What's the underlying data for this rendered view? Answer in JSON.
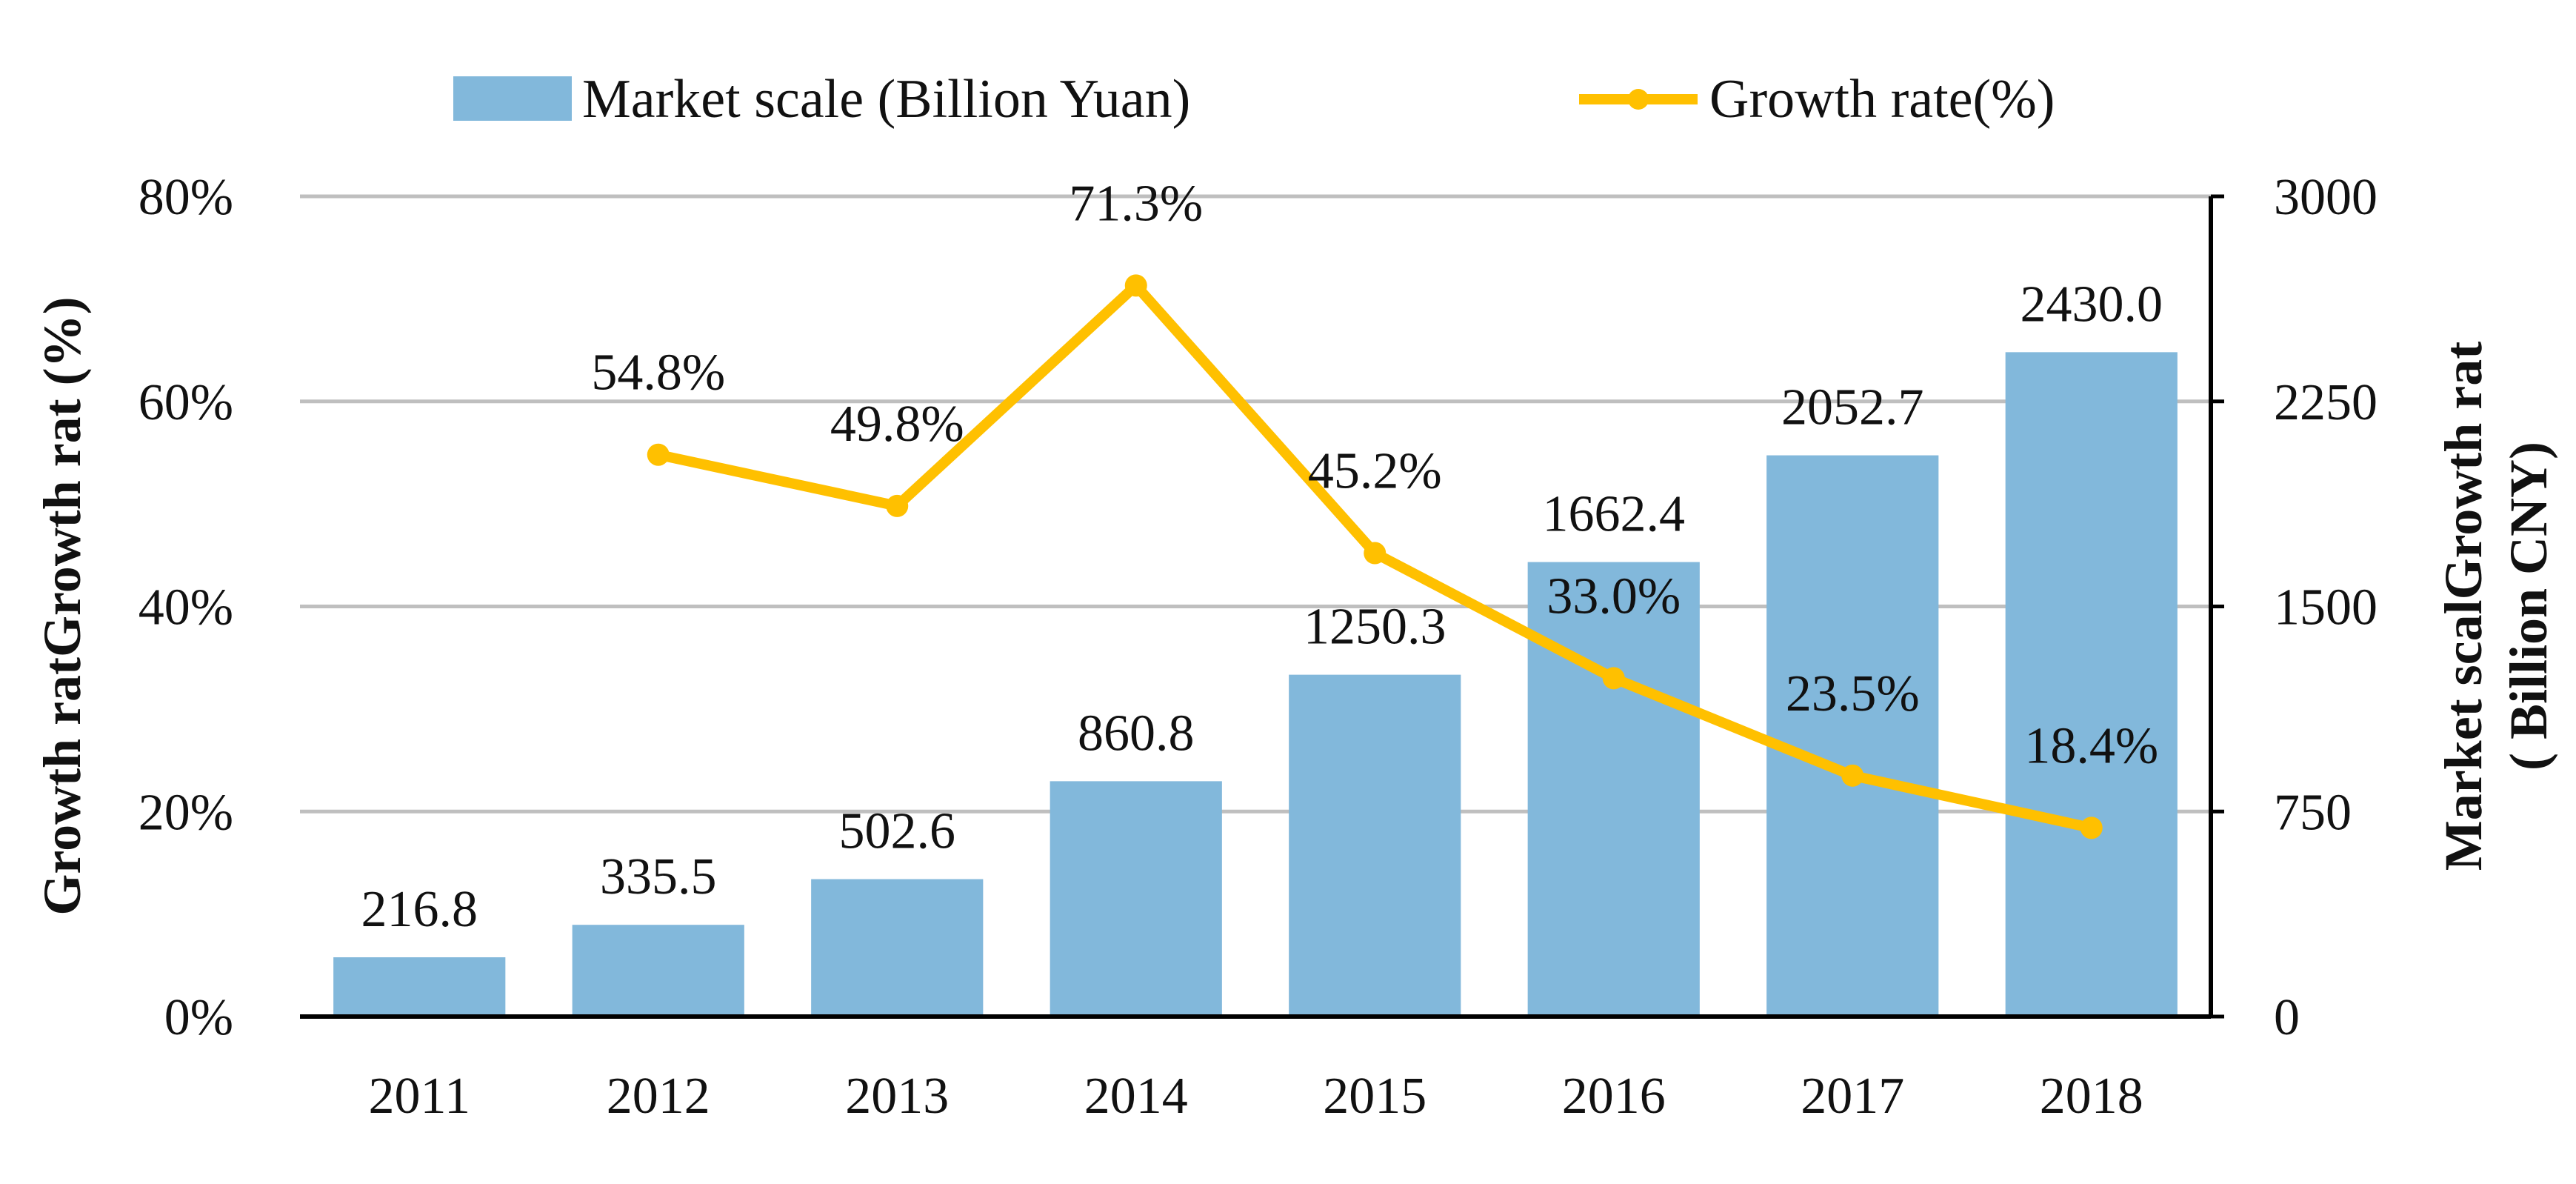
{
  "chart_data": {
    "type": "bar",
    "categories": [
      "2011",
      "2012",
      "2013",
      "2014",
      "2015",
      "2016",
      "2017",
      "2018"
    ],
    "series": [
      {
        "name": "Market scale (Billion Yuan)",
        "type": "bar",
        "axis": "right",
        "values": [
          216.8,
          335.5,
          502.6,
          860.8,
          1250.3,
          1662.4,
          2052.7,
          2430.0
        ],
        "labels": [
          "216.8",
          "335.5",
          "502.6",
          "860.8",
          "1250.3",
          "1662.4",
          "2052.7",
          "2430.0"
        ]
      },
      {
        "name": "Growth rate(%)",
        "type": "line",
        "axis": "left",
        "values": [
          null,
          54.8,
          49.8,
          71.3,
          45.2,
          33.0,
          23.5,
          18.4
        ],
        "labels": [
          "",
          "54.8%",
          "49.8%",
          "71.3%",
          "45.2%",
          "33.0%",
          "23.5%",
          "18.4%"
        ]
      }
    ],
    "y_left": {
      "label": "Growth ratGrowth rat (%)",
      "range": [
        0,
        80
      ],
      "ticks": [
        0,
        20,
        40,
        60,
        80
      ],
      "tick_labels": [
        "0%",
        "20%",
        "40%",
        "60%",
        "80%"
      ]
    },
    "y_right": {
      "label_line1": "Market scalGrowth rat",
      "label_line2": "( Billion CNY)",
      "range": [
        0,
        3000
      ],
      "ticks": [
        0,
        750,
        1500,
        2250,
        3000
      ],
      "tick_labels": [
        "0",
        "750",
        "1500",
        "2250",
        "3000"
      ]
    },
    "legend": {
      "position": "top"
    },
    "grid": true,
    "colors": {
      "bar": "#82b8db",
      "line": "#ffc000",
      "grid": "#bfbfbf",
      "axis": "#000000"
    }
  }
}
